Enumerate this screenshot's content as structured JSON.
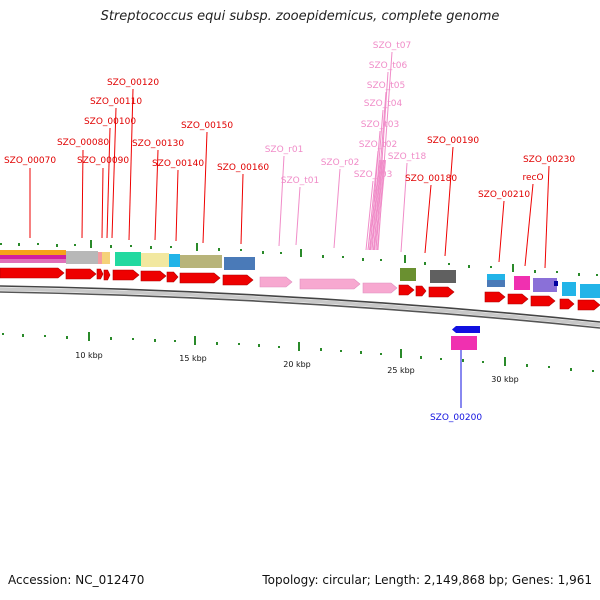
{
  "title": "Streptococcus equi subsp. zooepidemicus, complete genome",
  "footer": {
    "accession": "Accession: NC_012470",
    "summary": "Topology: circular; Length: 2,149,868 bp; Genes: 1,961"
  },
  "scale": {
    "unit": "kbp",
    "ticks": [
      "10 kbp",
      "15 kbp",
      "20 kbp",
      "25 kbp",
      "30 kbp"
    ]
  },
  "gene_labels": [
    {
      "name": "SZO_00070",
      "strand": "forward",
      "kind": "cds"
    },
    {
      "name": "SZO_00080",
      "strand": "forward",
      "kind": "cds"
    },
    {
      "name": "SZO_00090",
      "strand": "forward",
      "kind": "cds"
    },
    {
      "name": "SZO_00100",
      "strand": "forward",
      "kind": "cds"
    },
    {
      "name": "SZO_00110",
      "strand": "forward",
      "kind": "cds"
    },
    {
      "name": "SZO_00120",
      "strand": "forward",
      "kind": "cds"
    },
    {
      "name": "SZO_00130",
      "strand": "forward",
      "kind": "cds"
    },
    {
      "name": "SZO_00140",
      "strand": "forward",
      "kind": "cds"
    },
    {
      "name": "SZO_00150",
      "strand": "forward",
      "kind": "cds"
    },
    {
      "name": "SZO_00160",
      "strand": "forward",
      "kind": "cds"
    },
    {
      "name": "SZO_r01",
      "strand": "forward",
      "kind": "rna"
    },
    {
      "name": "SZO_t01",
      "strand": "forward",
      "kind": "rna"
    },
    {
      "name": "SZO_r02",
      "strand": "forward",
      "kind": "rna"
    },
    {
      "name": "SZO_r03",
      "strand": "forward",
      "kind": "rna"
    },
    {
      "name": "SZO_t02",
      "strand": "forward",
      "kind": "rna"
    },
    {
      "name": "SZO_t03",
      "strand": "forward",
      "kind": "rna"
    },
    {
      "name": "SZO_t04",
      "strand": "forward",
      "kind": "rna"
    },
    {
      "name": "SZO_t05",
      "strand": "forward",
      "kind": "rna"
    },
    {
      "name": "SZO_t06",
      "strand": "forward",
      "kind": "rna"
    },
    {
      "name": "SZO_t07",
      "strand": "forward",
      "kind": "rna"
    },
    {
      "name": "SZO_t18",
      "strand": "forward",
      "kind": "rna"
    },
    {
      "name": "SZO_00180",
      "strand": "forward",
      "kind": "cds"
    },
    {
      "name": "SZO_00190",
      "strand": "forward",
      "kind": "cds"
    },
    {
      "name": "SZO_00200",
      "strand": "reverse",
      "kind": "cds"
    },
    {
      "name": "SZO_00210",
      "strand": "forward",
      "kind": "cds"
    },
    {
      "name": "recO",
      "strand": "forward",
      "kind": "cds"
    },
    {
      "name": "SZO_00230",
      "strand": "forward",
      "kind": "cds"
    }
  ],
  "colors": {
    "cds_forward": "#ee0000",
    "cds_reverse": "#1010e0",
    "rna": "#f7a8d0",
    "label_rna": "#f08cc8",
    "backbone": "#999999",
    "tick": "#2a8a2a"
  }
}
